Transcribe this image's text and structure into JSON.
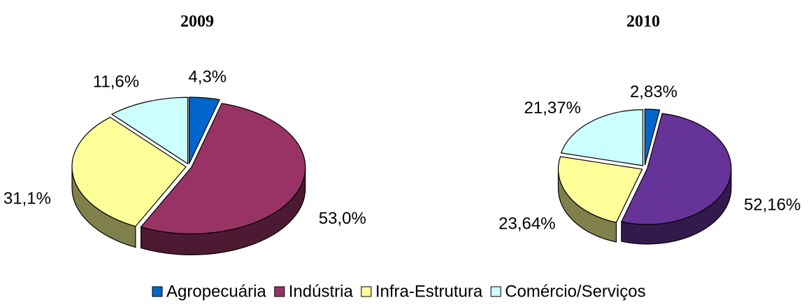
{
  "chart_data": [
    {
      "type": "pie",
      "title": "2009",
      "categories": [
        "Agropecuária",
        "Indústria",
        "Infra-Estrutura",
        "Comércio/Serviços"
      ],
      "values": [
        4.3,
        53.0,
        31.1,
        11.6
      ],
      "value_labels": [
        "4,3%",
        "53,0%",
        "31,1%",
        "11,6%"
      ],
      "colors": [
        "#0066cc",
        "#993366",
        "#ffff99",
        "#ccffff"
      ],
      "legend": "bottom"
    },
    {
      "type": "pie",
      "title": "2010",
      "categories": [
        "Agropecuária",
        "Indústria",
        "Infra-Estrutura",
        "Comércio/Serviços"
      ],
      "values": [
        2.83,
        52.16,
        23.64,
        21.37
      ],
      "value_labels": [
        "2,83%",
        "52,16%",
        "23,64%",
        "21,37%"
      ],
      "colors": [
        "#0066cc",
        "#663399",
        "#ffff99",
        "#ccffff"
      ],
      "legend": false
    }
  ]
}
